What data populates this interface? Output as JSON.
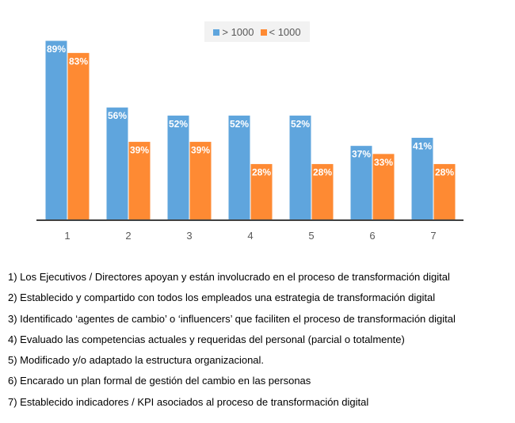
{
  "chart_data": {
    "type": "bar",
    "title": "",
    "xlabel": "",
    "ylabel": "",
    "ylim": [
      0,
      100
    ],
    "grid": false,
    "legend_position": "top-right",
    "categories": [
      "1",
      "2",
      "3",
      "4",
      "5",
      "6",
      "7"
    ],
    "series": [
      {
        "name": "> 1000",
        "color": "#5fa5dd",
        "values": [
          89,
          56,
          52,
          52,
          52,
          37,
          41
        ],
        "labels": [
          "89%",
          "56%",
          "52%",
          "52%",
          "52%",
          "37%",
          "41%"
        ]
      },
      {
        "name": "< 1000",
        "color": "#fe8a33",
        "values": [
          83,
          39,
          39,
          28,
          28,
          33,
          28
        ],
        "labels": [
          "83%",
          "39%",
          "39%",
          "28%",
          "28%",
          "33%",
          "28%"
        ]
      }
    ]
  },
  "notes": [
    "1) Los Ejecutivos / Directores apoyan y están involucrado en el proceso de transformación digital",
    "2) Establecido y compartido con todos los empleados una estrategia de transformación digital",
    "3) Identificado ‘agentes de cambio’ o ‘influencers’ que faciliten el proceso de transformación digital",
    "4) Evaluado las competencias actuales y requeridas del personal (parcial o totalmente)",
    "5) Modificado y/o adaptado la estructura organizacional.",
    "6) Encarado un plan formal de gestión del cambio en las personas",
    "7) Establecido indicadores / KPI asociados al proceso de transformación digital"
  ]
}
